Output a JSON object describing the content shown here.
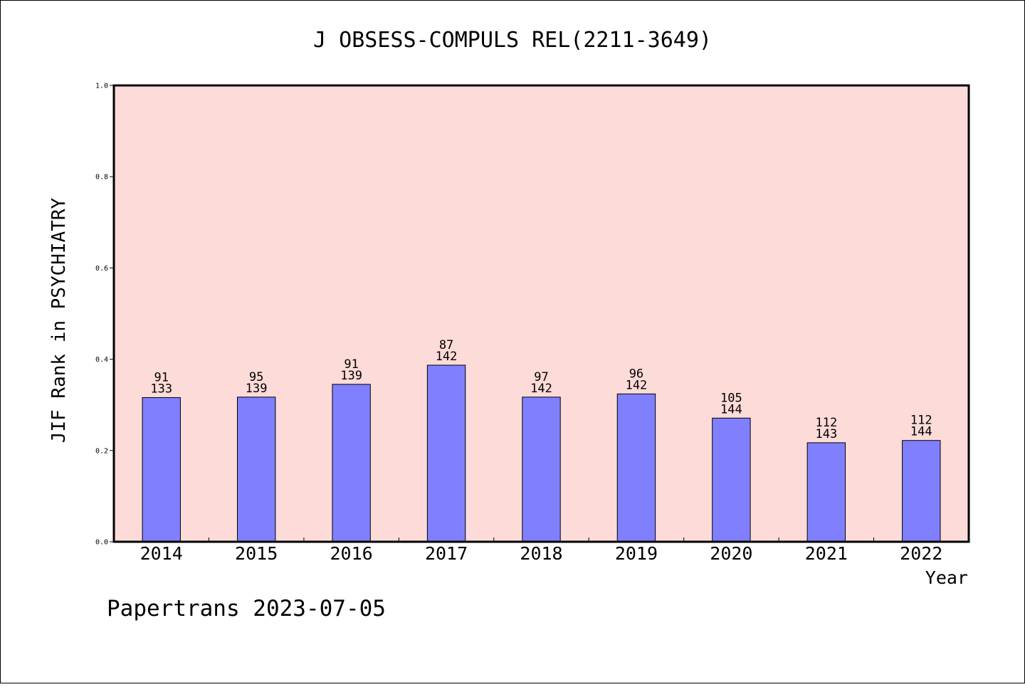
{
  "chart_data": {
    "type": "bar",
    "title": "J OBSESS-COMPULS REL(2211-3649)",
    "xlabel": "Year",
    "ylabel": "JIF Rank in PSYCHIATRY",
    "ylim": [
      0,
      1.0
    ],
    "yticks": [
      "0.0",
      "0.2",
      "0.4",
      "0.6",
      "0.8",
      "1.0"
    ],
    "categories": [
      "2014",
      "2015",
      "2016",
      "2017",
      "2018",
      "2019",
      "2020",
      "2021",
      "2022"
    ],
    "values": [
      0.316,
      0.317,
      0.345,
      0.387,
      0.317,
      0.324,
      0.271,
      0.217,
      0.222
    ],
    "labels_top": [
      "91",
      "95",
      "91",
      "87",
      "97",
      "96",
      "105",
      "112",
      "112"
    ],
    "labels_bottom": [
      "133",
      "139",
      "139",
      "142",
      "142",
      "142",
      "144",
      "143",
      "144"
    ],
    "grid": false,
    "colors": {
      "plot_bg": "#fddbd8",
      "bar": "#8080ff",
      "frame": "#000000"
    }
  },
  "footer": "Papertrans 2023-07-05"
}
